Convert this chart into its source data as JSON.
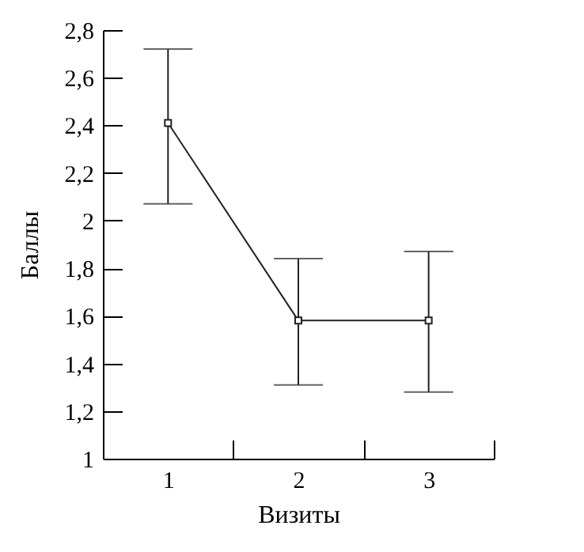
{
  "chart_data": {
    "type": "line",
    "xlabel": "Визиты",
    "ylabel": "Баллы",
    "categories": [
      "1",
      "2",
      "3"
    ],
    "values": [
      2.41,
      1.58,
      1.58
    ],
    "errors": [
      [
        2.07,
        2.72
      ],
      [
        1.31,
        1.84
      ],
      [
        1.28,
        1.87
      ]
    ],
    "color": "#222222",
    "marker": "square",
    "line_style": "solid",
    "grid": false,
    "ylim": [
      1,
      2.8
    ],
    "yticks": [
      1,
      {
        "value": 1.2,
        "label": "1,2"
      },
      {
        "value": 1.4,
        "label": "1,4"
      },
      {
        "value": 1.6,
        "label": "1,6"
      },
      {
        "value": 1.8,
        "label": "1,8"
      },
      2,
      {
        "value": 2.2,
        "label": "2,2"
      },
      {
        "value": 2.4,
        "label": "2,4"
      },
      {
        "value": 2.6,
        "label": "2,6"
      },
      {
        "value": 2.8,
        "label": "2,8"
      }
    ]
  }
}
